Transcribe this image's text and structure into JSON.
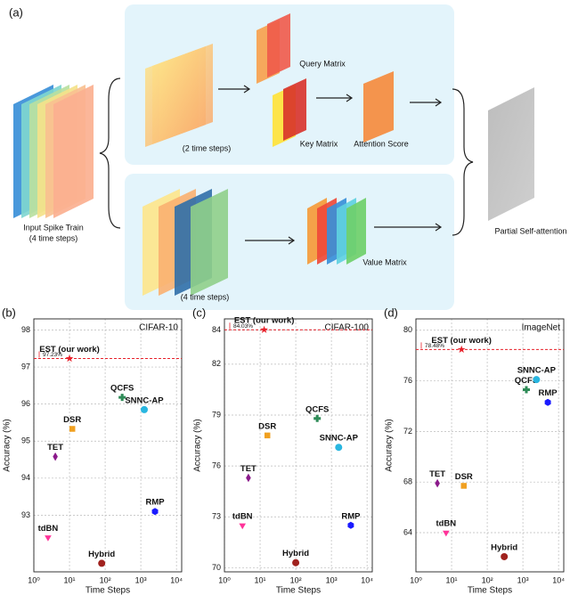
{
  "diagram": {
    "panel_label": "(a)",
    "input_label": [
      "Input Spike Train",
      "(4 time steps)"
    ],
    "upper_steps": "(2 time steps)",
    "query": "Query Matrix",
    "key": "Key Matrix",
    "attention": "Attention Score",
    "lower_steps": "(4 time steps)",
    "value": "Value Matrix",
    "output": "Partial Self-attention"
  },
  "chart_data": [
    {
      "type": "scatter",
      "panel_label": "(b)",
      "title": "CIFAR-10",
      "xlabel": "Time Steps",
      "ylabel": "Accuracy (%)",
      "xscale": "log",
      "grid": true,
      "xlim": [
        1,
        14000
      ],
      "ylim": [
        91.47,
        98.3
      ],
      "xticks": [
        {
          "value": 1,
          "label": "10⁰"
        },
        {
          "value": 10,
          "label": "10¹"
        },
        {
          "value": 100,
          "label": "10²"
        },
        {
          "value": 1000,
          "label": "10³"
        },
        {
          "value": 10000,
          "label": "10⁴"
        }
      ],
      "yticks": [
        93,
        94,
        95,
        96,
        97,
        98
      ],
      "series": [
        {
          "name": "EST (our work)",
          "color": "#e8202a",
          "marker": "star",
          "x": [
            10
          ],
          "values": [
            97.23
          ],
          "value_labels": [
            "97.23%"
          ],
          "reference_line": true
        },
        {
          "name": "QCFS",
          "color": "#2e8b57",
          "marker": "plus",
          "x": [
            300
          ],
          "values": [
            96.18
          ]
        },
        {
          "name": "SNNC-AP",
          "color": "#29b6e0",
          "marker": "circle",
          "x": [
            1250
          ],
          "values": [
            95.85
          ]
        },
        {
          "name": "DSR",
          "color": "#f0a020",
          "marker": "square",
          "x": [
            12
          ],
          "values": [
            95.33
          ]
        },
        {
          "name": "TET",
          "color": "#8b1a8b",
          "marker": "diamond",
          "x": [
            4
          ],
          "values": [
            94.58
          ]
        },
        {
          "name": "RMP",
          "color": "#1a1aff",
          "marker": "hexagon",
          "x": [
            2500
          ],
          "values": [
            93.1
          ]
        },
        {
          "name": "tdBN",
          "color": "#ff3399",
          "marker": "triangle-down",
          "x": [
            2.5
          ],
          "values": [
            92.4
          ]
        },
        {
          "name": "Hybrid",
          "color": "#a0221e",
          "marker": "circle",
          "x": [
            80
          ],
          "values": [
            91.7
          ]
        }
      ]
    },
    {
      "type": "scatter",
      "panel_label": "(c)",
      "title": "CIFAR-100",
      "xlabel": "Time Steps",
      "ylabel": "Accuracy (%)",
      "xscale": "log",
      "grid": true,
      "xlim": [
        1,
        14000
      ],
      "ylim": [
        69.76,
        84.67
      ],
      "xticks": [
        {
          "value": 1,
          "label": "10⁰"
        },
        {
          "value": 10,
          "label": "10¹"
        },
        {
          "value": 100,
          "label": "10²"
        },
        {
          "value": 1000,
          "label": "10³"
        },
        {
          "value": 10000,
          "label": "10⁴"
        }
      ],
      "yticks": [
        70,
        73,
        76,
        79,
        82,
        84
      ],
      "series": [
        {
          "name": "EST (our work)",
          "color": "#e8202a",
          "marker": "star",
          "x": [
            13
          ],
          "values": [
            84.03
          ],
          "value_labels": [
            "84.03%"
          ],
          "reference_line": true
        },
        {
          "name": "QCFS",
          "color": "#2e8b57",
          "marker": "plus",
          "x": [
            400
          ],
          "values": [
            78.8
          ]
        },
        {
          "name": "SNNC-AP",
          "color": "#29b6e0",
          "marker": "circle",
          "x": [
            1600
          ],
          "values": [
            77.1
          ]
        },
        {
          "name": "DSR",
          "color": "#f0a020",
          "marker": "square",
          "x": [
            16
          ],
          "values": [
            77.8
          ]
        },
        {
          "name": "TET",
          "color": "#8b1a8b",
          "marker": "diamond",
          "x": [
            4.7
          ],
          "values": [
            75.3
          ]
        },
        {
          "name": "RMP",
          "color": "#1a1aff",
          "marker": "hexagon",
          "x": [
            3500
          ],
          "values": [
            72.5
          ]
        },
        {
          "name": "tdBN",
          "color": "#ff3399",
          "marker": "triangle-down",
          "x": [
            3.2
          ],
          "values": [
            72.5
          ]
        },
        {
          "name": "Hybrid",
          "color": "#a0221e",
          "marker": "circle",
          "x": [
            100
          ],
          "values": [
            70.3
          ]
        }
      ]
    },
    {
      "type": "scatter",
      "panel_label": "(d)",
      "title": "ImageNet",
      "xlabel": "Time Steps",
      "ylabel": "Accuracy (%)",
      "xscale": "log",
      "grid": true,
      "xlim": [
        1,
        14000
      ],
      "ylim": [
        60.9,
        80.9
      ],
      "xticks": [
        {
          "value": 1,
          "label": "10⁰"
        },
        {
          "value": 10,
          "label": "10¹"
        },
        {
          "value": 100,
          "label": "10²"
        },
        {
          "value": 1000,
          "label": "10³"
        },
        {
          "value": 10000,
          "label": "10⁴"
        }
      ],
      "yticks": [
        64,
        68,
        72,
        76,
        80
      ],
      "series": [
        {
          "name": "EST (our work)",
          "color": "#e8202a",
          "marker": "star",
          "x": [
            19
          ],
          "values": [
            78.48
          ],
          "value_labels": [
            "78.48%"
          ],
          "reference_line": true
        },
        {
          "name": "QCFS",
          "color": "#2e8b57",
          "marker": "plus",
          "x": [
            1250
          ],
          "values": [
            75.3
          ]
        },
        {
          "name": "SNNC-AP",
          "color": "#29b6e0",
          "marker": "circle",
          "x": [
            2400
          ],
          "values": [
            76.1
          ]
        },
        {
          "name": "DSR",
          "color": "#f0a020",
          "marker": "square",
          "x": [
            22
          ],
          "values": [
            67.7
          ]
        },
        {
          "name": "TET",
          "color": "#8b1a8b",
          "marker": "diamond",
          "x": [
            4
          ],
          "values": [
            67.9
          ]
        },
        {
          "name": "RMP",
          "color": "#1a1aff",
          "marker": "hexagon",
          "x": [
            5000
          ],
          "values": [
            74.3
          ]
        },
        {
          "name": "tdBN",
          "color": "#ff3399",
          "marker": "triangle-down",
          "x": [
            7
          ],
          "values": [
            64.0
          ]
        },
        {
          "name": "Hybrid",
          "color": "#a0221e",
          "marker": "circle",
          "x": [
            300
          ],
          "values": [
            62.1
          ]
        }
      ]
    }
  ]
}
